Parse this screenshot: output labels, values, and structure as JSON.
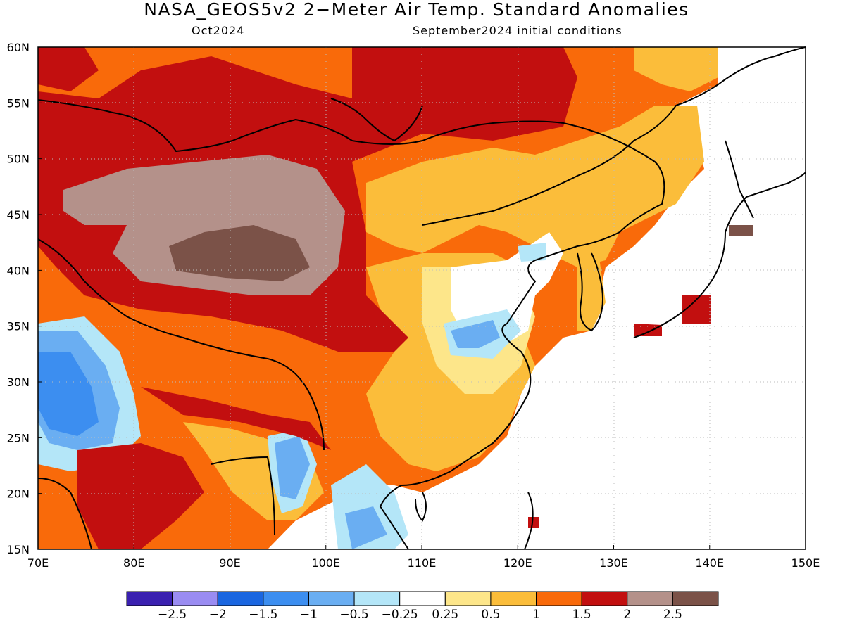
{
  "title": "NASA_GEOS5v2 2−Meter Air Temp. Standard Anomalies",
  "subtitle_left": "Oct2024",
  "subtitle_right": "September2024 initial conditions",
  "map": {
    "lon_ticks": [
      "70E",
      "80E",
      "90E",
      "100E",
      "110E",
      "120E",
      "130E",
      "140E",
      "150E"
    ],
    "lat_ticks": [
      "60N",
      "55N",
      "50N",
      "45N",
      "40N",
      "35N",
      "30N",
      "25N",
      "20N",
      "15N"
    ],
    "lon_range": [
      70,
      150
    ],
    "lat_range": [
      15,
      60
    ],
    "grid": "dotted"
  },
  "colorbar": {
    "colors": [
      "#3a20b0",
      "#9a8cf2",
      "#1a66e0",
      "#3c8ef0",
      "#6aaef2",
      "#b4e6f8",
      "#ffffff",
      "#fde68a",
      "#fbbd3a",
      "#f96a0a",
      "#c20f0f",
      "#b4918a",
      "#7b5248"
    ],
    "labels": [
      "−2.5",
      "−2",
      "−1.5",
      "−1",
      "−0.5",
      "−0.25",
      "0.25",
      "0.5",
      "1",
      "1.5",
      "2",
      "2.5"
    ]
  }
}
